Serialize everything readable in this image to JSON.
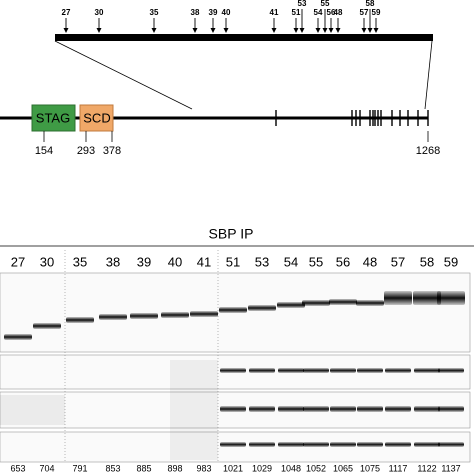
{
  "top_arrows": [
    "27",
    "30",
    "35",
    "38",
    "39",
    "40",
    "41",
    "51",
    "53",
    "54",
    "55",
    "56",
    "48",
    "58",
    "57",
    "59"
  ],
  "domains": [
    "STAG",
    "SCD"
  ],
  "positions": [
    "154",
    "293",
    "378",
    "1268"
  ],
  "blot": {
    "title": "SBP IP",
    "lanes": [
      "27",
      "30",
      "35",
      "38",
      "39",
      "40",
      "41",
      "51",
      "53",
      "54",
      "55",
      "56",
      "48",
      "57",
      "58",
      "59"
    ],
    "residues": [
      "653",
      "704",
      "791",
      "853",
      "885",
      "898",
      "983",
      "1021",
      "1029",
      "1048",
      "1052",
      "1065",
      "1075",
      "1117",
      "1122",
      "1137"
    ]
  }
}
